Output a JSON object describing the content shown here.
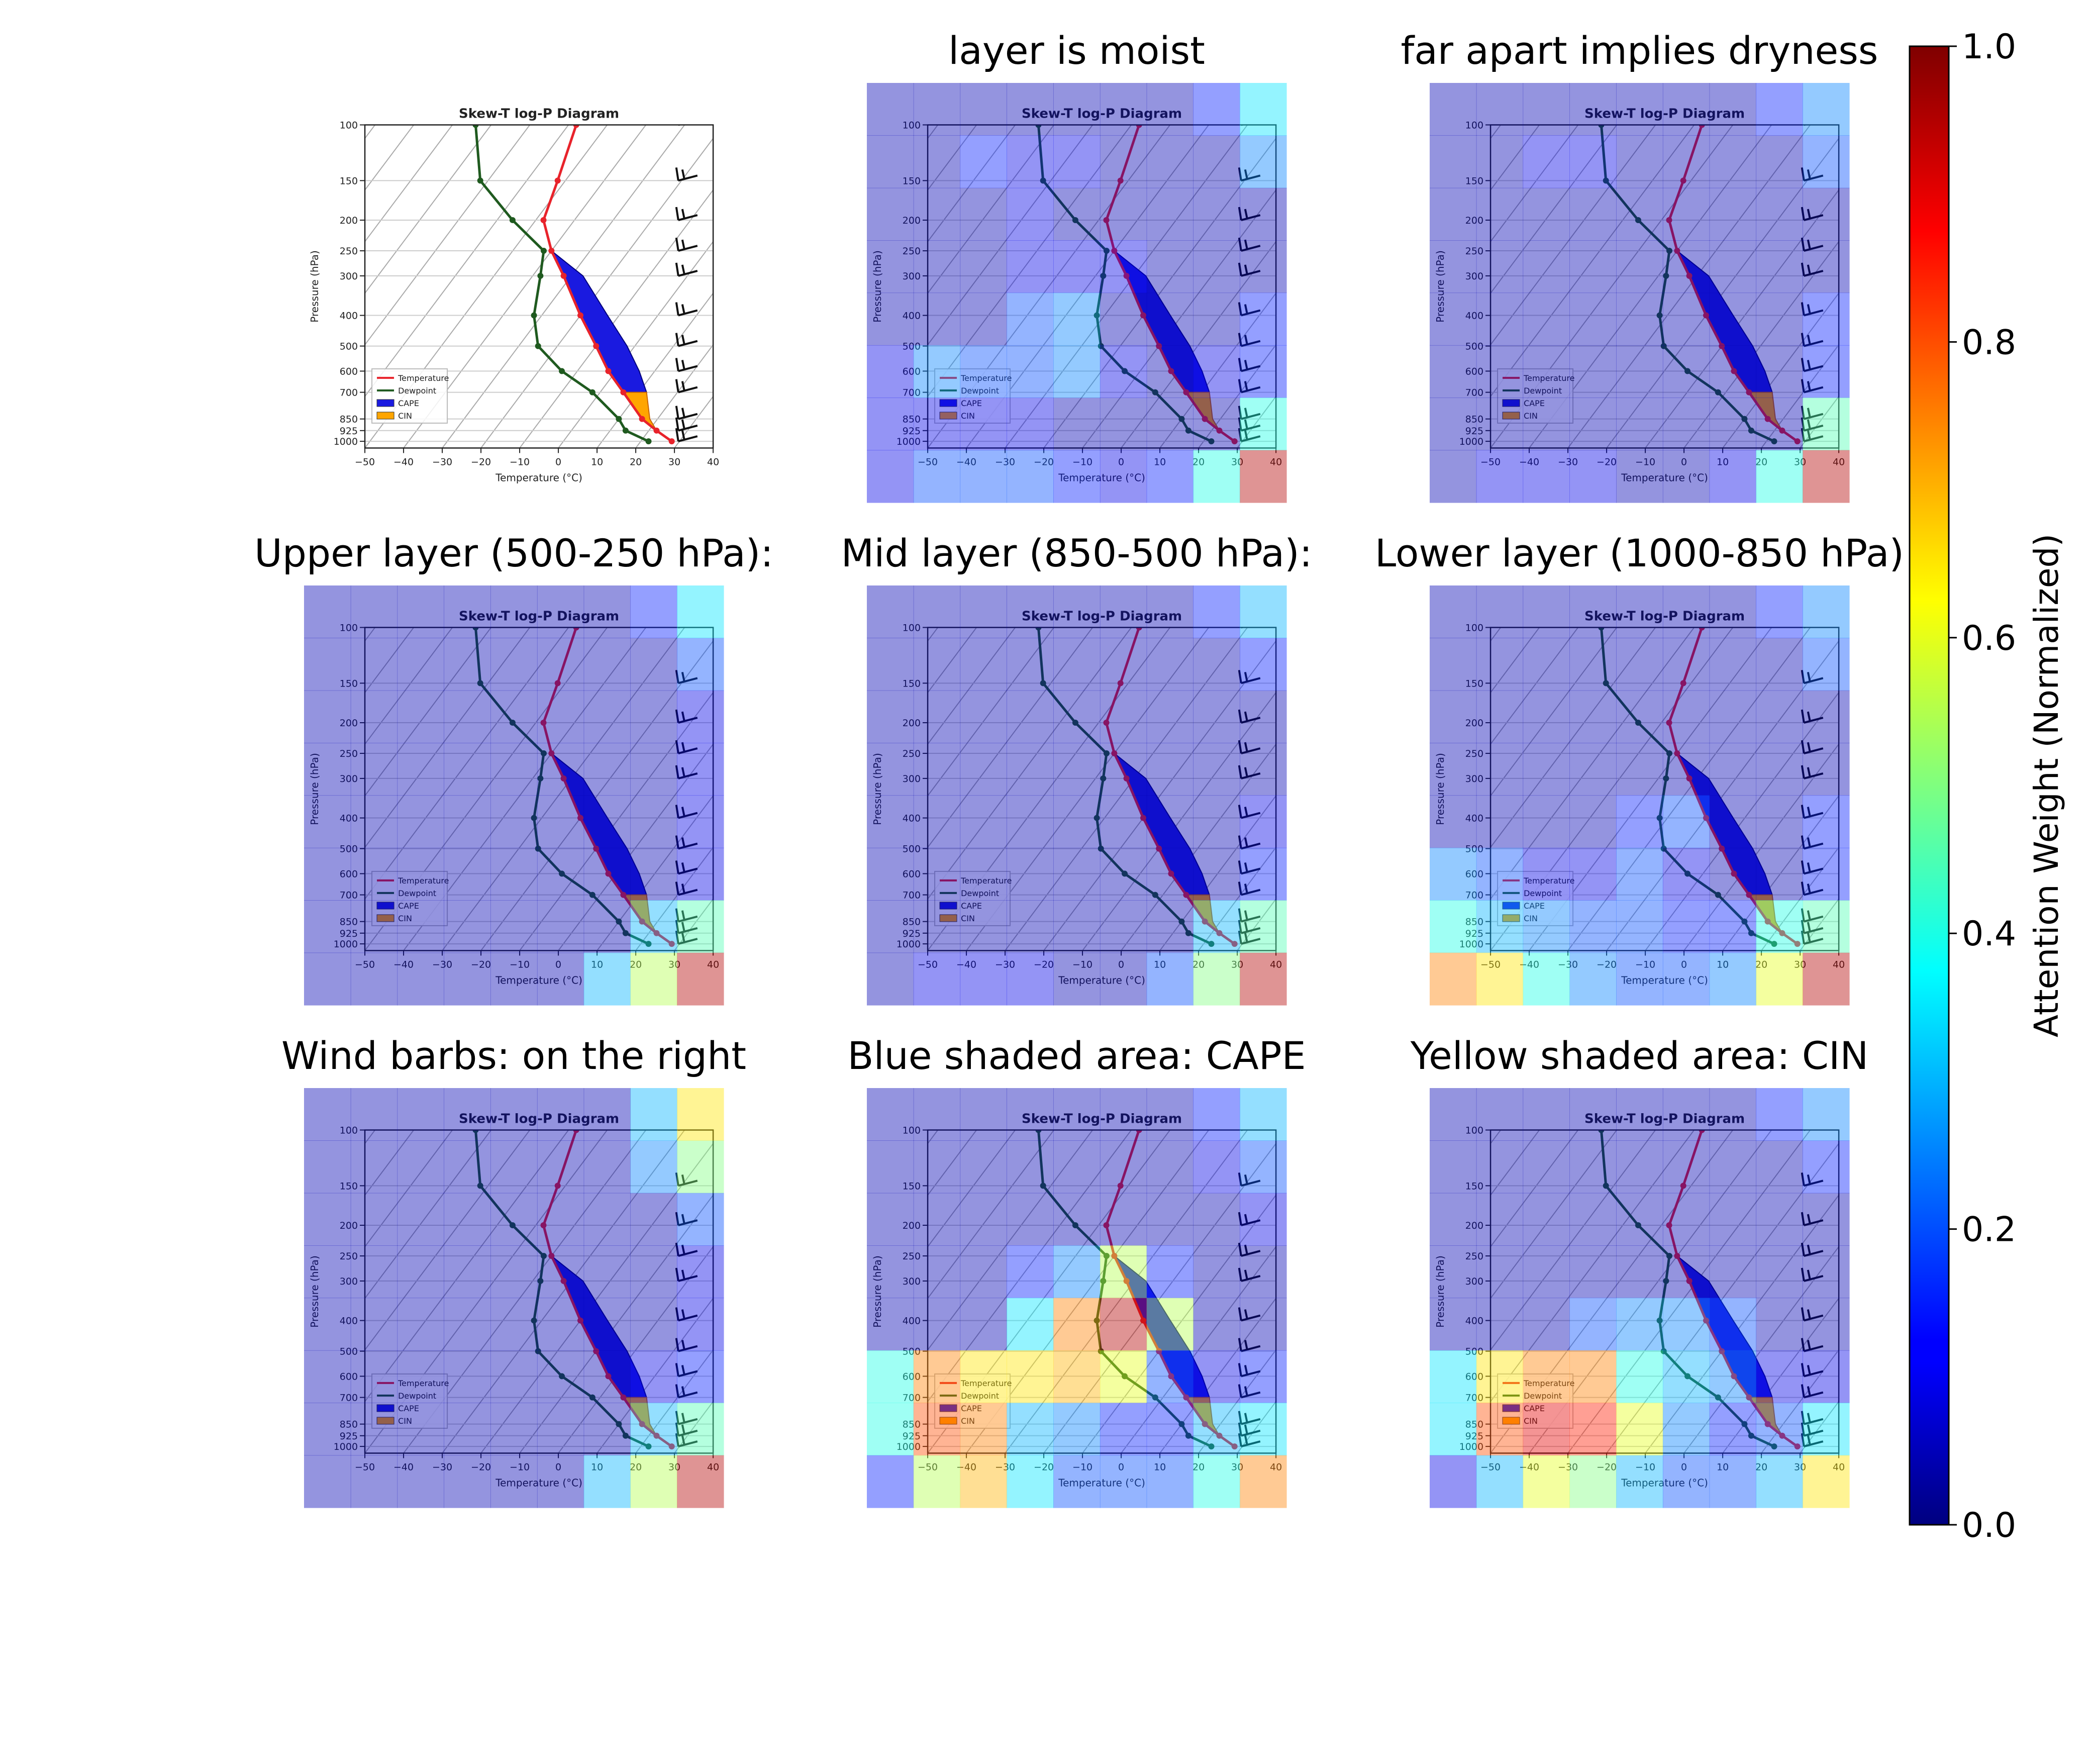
{
  "figure": {
    "inner_title": "Skew-T log-P Diagram",
    "pressure_ticks": [
      "100",
      "150",
      "200",
      "250",
      "300",
      "400",
      "500",
      "600",
      "700",
      "850",
      "925",
      "1000"
    ],
    "temperature_ticks": [
      "−50",
      "−40",
      "−30",
      "−20",
      "−10",
      "0",
      "10",
      "20",
      "30",
      "40"
    ],
    "xlabel": "Temperature (°C)",
    "ylabel": "Pressure (hPa)",
    "legend": [
      "Temperature",
      "Dewpoint",
      "CAPE",
      "CIN"
    ],
    "colors": {
      "temperature": "#e8232b",
      "dewpoint": "#1f5a1f",
      "cape": "#1a1ae0",
      "cin": "#ffa500"
    },
    "panels": [
      {
        "title": "",
        "attention": null
      },
      {
        "title": "layer is moist",
        "attention": [
          [
            0.05,
            0.05,
            0.05,
            0.05,
            0.05,
            0.05,
            0.05,
            0.15,
            0.35
          ],
          [
            0.05,
            0.05,
            0.15,
            0.1,
            0.1,
            0.05,
            0.05,
            0.05,
            0.25
          ],
          [
            0.05,
            0.05,
            0.05,
            0.1,
            0.05,
            0.05,
            0.05,
            0.05,
            0.05
          ],
          [
            0.05,
            0.05,
            0.05,
            0.1,
            0.1,
            0.1,
            0.05,
            0.05,
            0.05
          ],
          [
            0.05,
            0.05,
            0.05,
            0.2,
            0.25,
            0.05,
            0.05,
            0.05,
            0.15
          ],
          [
            0.1,
            0.25,
            0.2,
            0.2,
            0.25,
            0.1,
            0.05,
            0.1,
            0.15
          ],
          [
            0.1,
            0.1,
            0.1,
            0.1,
            0.05,
            0.05,
            0.05,
            0.05,
            0.4
          ],
          [
            0.1,
            0.2,
            0.2,
            0.2,
            0.15,
            0.1,
            0.15,
            0.4,
            0.95
          ]
        ]
      },
      {
        "title": "far apart implies dryness",
        "attention": [
          [
            0.05,
            0.05,
            0.05,
            0.05,
            0.05,
            0.05,
            0.05,
            0.15,
            0.25
          ],
          [
            0.05,
            0.05,
            0.1,
            0.1,
            0.05,
            0.05,
            0.05,
            0.05,
            0.2
          ],
          [
            0.05,
            0.05,
            0.05,
            0.05,
            0.05,
            0.05,
            0.05,
            0.05,
            0.05
          ],
          [
            0.05,
            0.05,
            0.05,
            0.05,
            0.05,
            0.05,
            0.05,
            0.05,
            0.05
          ],
          [
            0.05,
            0.05,
            0.05,
            0.05,
            0.05,
            0.05,
            0.05,
            0.05,
            0.15
          ],
          [
            0.05,
            0.05,
            0.05,
            0.05,
            0.05,
            0.05,
            0.05,
            0.05,
            0.15
          ],
          [
            0.05,
            0.05,
            0.05,
            0.05,
            0.05,
            0.05,
            0.05,
            0.05,
            0.45
          ],
          [
            0.05,
            0.1,
            0.1,
            0.1,
            0.05,
            0.05,
            0.1,
            0.4,
            0.95
          ]
        ]
      },
      {
        "title": "Upper layer (500-250 hPa):",
        "attention": [
          [
            0.05,
            0.05,
            0.05,
            0.05,
            0.05,
            0.05,
            0.05,
            0.15,
            0.35
          ],
          [
            0.05,
            0.05,
            0.05,
            0.05,
            0.05,
            0.05,
            0.05,
            0.05,
            0.2
          ],
          [
            0.05,
            0.05,
            0.05,
            0.05,
            0.05,
            0.05,
            0.05,
            0.05,
            0.1
          ],
          [
            0.05,
            0.05,
            0.05,
            0.05,
            0.05,
            0.05,
            0.05,
            0.05,
            0.1
          ],
          [
            0.05,
            0.05,
            0.05,
            0.05,
            0.05,
            0.05,
            0.05,
            0.05,
            0.1
          ],
          [
            0.05,
            0.05,
            0.05,
            0.05,
            0.05,
            0.05,
            0.05,
            0.05,
            0.1
          ],
          [
            0.05,
            0.05,
            0.05,
            0.05,
            0.05,
            0.05,
            0.05,
            0.3,
            0.45
          ],
          [
            0.05,
            0.05,
            0.05,
            0.05,
            0.05,
            0.05,
            0.3,
            0.55,
            0.95
          ]
        ]
      },
      {
        "title": "Mid layer (850-500 hPa):",
        "attention": [
          [
            0.05,
            0.05,
            0.05,
            0.05,
            0.05,
            0.05,
            0.05,
            0.15,
            0.3
          ],
          [
            0.05,
            0.05,
            0.05,
            0.05,
            0.05,
            0.05,
            0.05,
            0.05,
            0.15
          ],
          [
            0.05,
            0.05,
            0.05,
            0.05,
            0.05,
            0.05,
            0.05,
            0.05,
            0.05
          ],
          [
            0.05,
            0.05,
            0.05,
            0.05,
            0.05,
            0.05,
            0.05,
            0.05,
            0.05
          ],
          [
            0.05,
            0.05,
            0.05,
            0.05,
            0.05,
            0.05,
            0.05,
            0.05,
            0.1
          ],
          [
            0.05,
            0.05,
            0.05,
            0.05,
            0.05,
            0.05,
            0.05,
            0.05,
            0.15
          ],
          [
            0.05,
            0.05,
            0.05,
            0.05,
            0.05,
            0.05,
            0.05,
            0.3,
            0.45
          ],
          [
            0.05,
            0.1,
            0.1,
            0.1,
            0.05,
            0.05,
            0.2,
            0.5,
            0.95
          ]
        ]
      },
      {
        "title": "Lower layer (1000-850 hPa)",
        "attention": [
          [
            0.05,
            0.05,
            0.05,
            0.05,
            0.05,
            0.05,
            0.05,
            0.15,
            0.25
          ],
          [
            0.05,
            0.05,
            0.05,
            0.05,
            0.05,
            0.05,
            0.05,
            0.05,
            0.2
          ],
          [
            0.05,
            0.05,
            0.05,
            0.05,
            0.05,
            0.05,
            0.05,
            0.05,
            0.05
          ],
          [
            0.05,
            0.05,
            0.05,
            0.05,
            0.05,
            0.05,
            0.05,
            0.05,
            0.05
          ],
          [
            0.05,
            0.05,
            0.05,
            0.05,
            0.15,
            0.2,
            0.05,
            0.05,
            0.15
          ],
          [
            0.25,
            0.2,
            0.1,
            0.1,
            0.2,
            0.1,
            0.05,
            0.05,
            0.15
          ],
          [
            0.4,
            0.3,
            0.25,
            0.2,
            0.2,
            0.15,
            0.15,
            0.4,
            0.45
          ],
          [
            0.75,
            0.65,
            0.4,
            0.25,
            0.2,
            0.2,
            0.25,
            0.6,
            0.95
          ]
        ]
      },
      {
        "title": "Wind barbs: on the right",
        "attention": [
          [
            0.05,
            0.05,
            0.05,
            0.05,
            0.05,
            0.05,
            0.05,
            0.3,
            0.65
          ],
          [
            0.05,
            0.05,
            0.05,
            0.05,
            0.05,
            0.05,
            0.05,
            0.25,
            0.5
          ],
          [
            0.05,
            0.05,
            0.05,
            0.05,
            0.05,
            0.05,
            0.05,
            0.05,
            0.2
          ],
          [
            0.05,
            0.05,
            0.05,
            0.05,
            0.05,
            0.05,
            0.05,
            0.05,
            0.1
          ],
          [
            0.05,
            0.05,
            0.05,
            0.05,
            0.05,
            0.05,
            0.05,
            0.05,
            0.1
          ],
          [
            0.05,
            0.05,
            0.05,
            0.05,
            0.05,
            0.05,
            0.05,
            0.1,
            0.15
          ],
          [
            0.05,
            0.05,
            0.05,
            0.05,
            0.05,
            0.05,
            0.05,
            0.3,
            0.45
          ],
          [
            0.05,
            0.05,
            0.05,
            0.05,
            0.05,
            0.05,
            0.3,
            0.55,
            0.95
          ]
        ]
      },
      {
        "title": "Blue shaded area: CAPE",
        "attention": [
          [
            0.05,
            0.05,
            0.05,
            0.05,
            0.05,
            0.05,
            0.05,
            0.15,
            0.3
          ],
          [
            0.05,
            0.05,
            0.05,
            0.05,
            0.05,
            0.05,
            0.05,
            0.1,
            0.2
          ],
          [
            0.05,
            0.05,
            0.05,
            0.05,
            0.05,
            0.05,
            0.05,
            0.05,
            0.1
          ],
          [
            0.05,
            0.05,
            0.05,
            0.15,
            0.25,
            0.55,
            0.15,
            0.05,
            0.05
          ],
          [
            0.05,
            0.05,
            0.05,
            0.35,
            0.75,
            0.95,
            0.55,
            0.05,
            0.05
          ],
          [
            0.4,
            0.75,
            0.65,
            0.65,
            0.7,
            0.6,
            0.2,
            0.1,
            0.15
          ],
          [
            0.4,
            0.8,
            0.75,
            0.3,
            0.25,
            0.15,
            0.15,
            0.3,
            0.35
          ],
          [
            0.15,
            0.55,
            0.7,
            0.35,
            0.2,
            0.2,
            0.2,
            0.4,
            0.75
          ]
        ]
      },
      {
        "title": "Yellow shaded area: CIN",
        "attention": [
          [
            0.05,
            0.05,
            0.05,
            0.05,
            0.05,
            0.05,
            0.05,
            0.15,
            0.25
          ],
          [
            0.05,
            0.05,
            0.05,
            0.05,
            0.05,
            0.05,
            0.05,
            0.05,
            0.15
          ],
          [
            0.05,
            0.05,
            0.05,
            0.05,
            0.05,
            0.05,
            0.05,
            0.05,
            0.05
          ],
          [
            0.05,
            0.05,
            0.05,
            0.05,
            0.05,
            0.05,
            0.05,
            0.05,
            0.05
          ],
          [
            0.05,
            0.05,
            0.05,
            0.2,
            0.25,
            0.25,
            0.2,
            0.05,
            0.05
          ],
          [
            0.35,
            0.65,
            0.75,
            0.75,
            0.4,
            0.3,
            0.25,
            0.1,
            0.1
          ],
          [
            0.35,
            0.8,
            0.9,
            0.85,
            0.6,
            0.25,
            0.15,
            0.2,
            0.35
          ],
          [
            0.1,
            0.3,
            0.6,
            0.5,
            0.3,
            0.2,
            0.2,
            0.3,
            0.65
          ]
        ]
      }
    ],
    "colorbar": {
      "label": "Attention Weight (Normalized)",
      "ticks": [
        "0.0",
        "0.2",
        "0.4",
        "0.6",
        "0.8",
        "1.0"
      ]
    }
  },
  "chart_data": {
    "type": "line",
    "grid": true,
    "x_range": [
      -50,
      40
    ],
    "y_range": [
      1050,
      100
    ],
    "y_scale": "log",
    "temperature": {
      "name": "Temperature",
      "pressure": [
        1000,
        925,
        850,
        700,
        600,
        500,
        400,
        300,
        250,
        200,
        150,
        100
      ],
      "temp": [
        28,
        22,
        16,
        6,
        -2,
        -10,
        -20,
        -32,
        -40,
        -48,
        -52,
        -58
      ]
    },
    "dewpoint": {
      "name": "Dewpoint",
      "pressure": [
        1000,
        925,
        850,
        700,
        600,
        500,
        400,
        300,
        250,
        200,
        150,
        100
      ],
      "temp": [
        22,
        14,
        10,
        -2,
        -14,
        -25,
        -32,
        -38,
        -42,
        -56,
        -72,
        -84
      ]
    },
    "parcel": {
      "pressure": [
        1000,
        925,
        850,
        700,
        600,
        500,
        400,
        300,
        250
      ],
      "temp": [
        28,
        22,
        18,
        12,
        6,
        -2,
        -13,
        -27,
        -40
      ]
    },
    "legend": [
      "Temperature",
      "Dewpoint",
      "CAPE",
      "CIN"
    ],
    "colorbar": {
      "vmin": 0.0,
      "vmax": 1.0,
      "cmap": "jet",
      "label": "Attention Weight (Normalized)"
    }
  }
}
